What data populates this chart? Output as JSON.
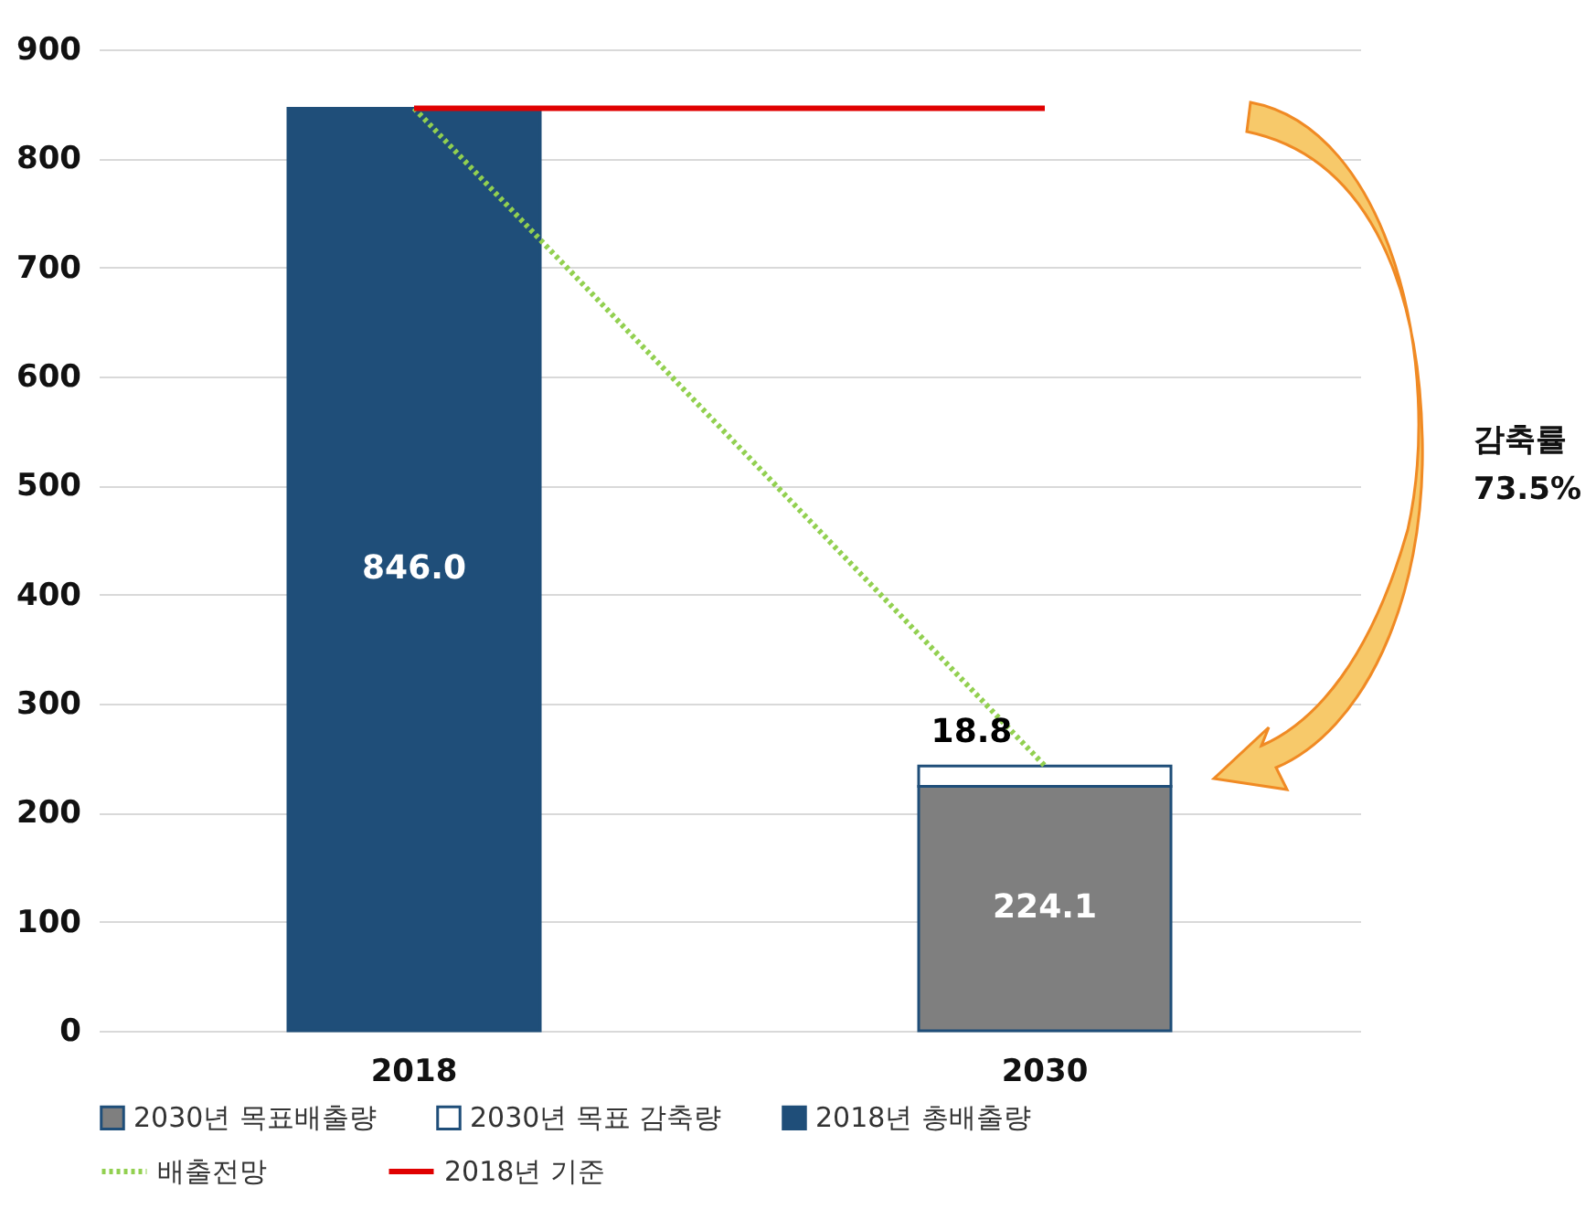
{
  "chart_data": {
    "type": "bar",
    "stacked": true,
    "categories": [
      "2018",
      "2030"
    ],
    "series": [
      {
        "name": "2030년 목표배출량",
        "type": "bar",
        "color": "#7f7f7f",
        "values": [
          null,
          224.1
        ],
        "value_labels": [
          null,
          "224.1"
        ]
      },
      {
        "name": "2030년 목표 감축량",
        "type": "bar",
        "color": "#ffffff",
        "values": [
          null,
          18.8
        ],
        "value_labels": [
          null,
          "18.8"
        ]
      },
      {
        "name": "2018년 총배출량",
        "type": "bar",
        "color": "#1f4e79",
        "values": [
          846.0,
          null
        ],
        "value_labels": [
          "846.0",
          null
        ]
      },
      {
        "name": "배출전망",
        "type": "line",
        "color": "#92d050",
        "line_style": "dotted",
        "values": [
          846,
          243
        ]
      },
      {
        "name": "2018년 기준",
        "type": "line",
        "color": "#e00000",
        "line_style": "solid",
        "values": [
          846,
          846
        ]
      }
    ],
    "ylim": [
      0,
      900
    ],
    "yticks": [
      0,
      100,
      200,
      300,
      400,
      500,
      600,
      700,
      800,
      900
    ],
    "grid": "y",
    "legend": "bottom",
    "annotations": [
      "감축률\n73.5%"
    ]
  }
}
